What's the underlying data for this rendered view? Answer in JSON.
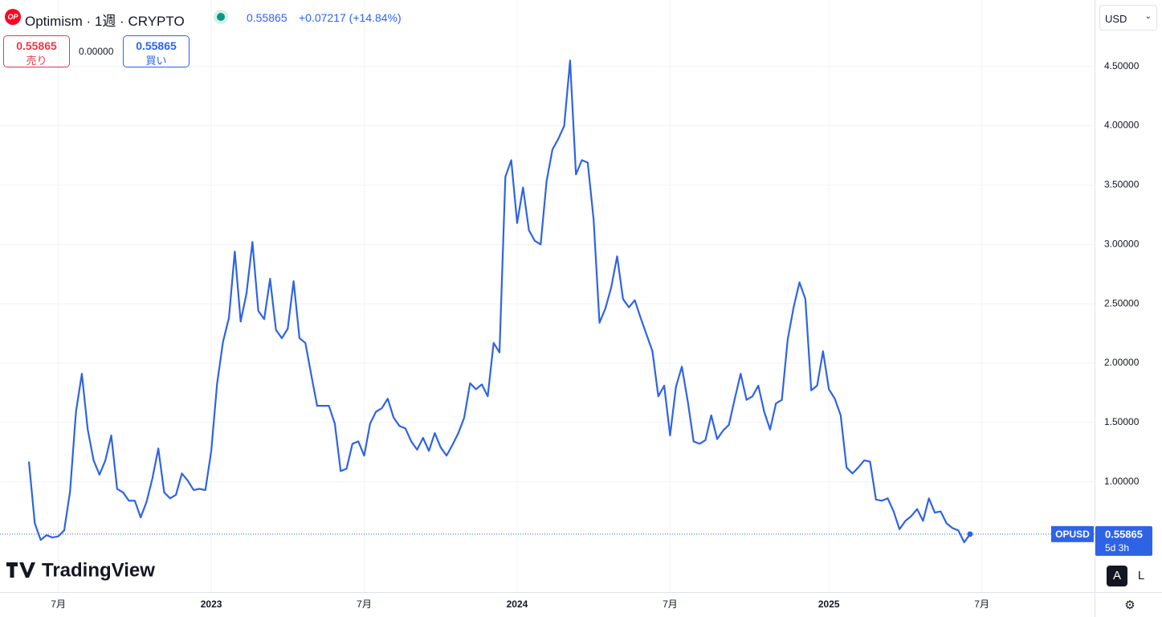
{
  "header": {
    "logo": "OP",
    "title": "Optimism · 1週 · CRYPTO",
    "price": "0.55865",
    "change": "+0.07217 (+14.84%)",
    "sell_price": "0.55865",
    "sell_label": "売り",
    "spread": "0.00000",
    "buy_price": "0.55865",
    "buy_label": "買い",
    "currency": "USD",
    "brand": "TradingView",
    "buttons": [
      "A",
      "L"
    ]
  },
  "chart_data": {
    "type": "line",
    "symbol": "OPUSD",
    "last_price_label": "0.55865",
    "countdown": "5d 3h",
    "categories": [
      null,
      null,
      null,
      null,
      null,
      "7月",
      null,
      null,
      null,
      null,
      null,
      null,
      null,
      null,
      null,
      null,
      null,
      null,
      null,
      null,
      null,
      null,
      null,
      null,
      null,
      null,
      null,
      null,
      null,
      null,
      null,
      "2023",
      null,
      null,
      null,
      null,
      null,
      null,
      null,
      null,
      null,
      null,
      null,
      null,
      null,
      null,
      null,
      null,
      null,
      null,
      null,
      null,
      null,
      null,
      null,
      null,
      null,
      "7月",
      null,
      null,
      null,
      null,
      null,
      null,
      null,
      null,
      null,
      null,
      null,
      null,
      null,
      null,
      null,
      null,
      null,
      null,
      null,
      null,
      null,
      null,
      null,
      null,
      null,
      "2024",
      null,
      null,
      null,
      null,
      null,
      null,
      null,
      null,
      null,
      null,
      null,
      null,
      null,
      null,
      null,
      null,
      null,
      null,
      null,
      null,
      null,
      null,
      null,
      null,
      null,
      "7月",
      null,
      null,
      null,
      null,
      null,
      null,
      null,
      null,
      null,
      null,
      null,
      null,
      null,
      null,
      null,
      null,
      null,
      null,
      null,
      null,
      null,
      null,
      null,
      null,
      null,
      null,
      "2025",
      null,
      null,
      null,
      null,
      null,
      null,
      null,
      null,
      null,
      null,
      null,
      null,
      null,
      null,
      null,
      null,
      null,
      null,
      null,
      null,
      null,
      null,
      null,
      null,
      null,
      "7月",
      null,
      null,
      null,
      null,
      null,
      null,
      null,
      null,
      null,
      null,
      null,
      null,
      null,
      null,
      null,
      null,
      null,
      null
    ],
    "series": [
      {
        "name": "OPUSD",
        "color": "#2f63e6",
        "values": [
          1.17,
          0.65,
          0.51,
          0.55,
          0.53,
          0.54,
          0.59,
          0.92,
          1.59,
          1.91,
          1.44,
          1.18,
          1.06,
          1.18,
          1.39,
          0.94,
          0.91,
          0.84,
          0.84,
          0.7,
          0.83,
          1.03,
          1.28,
          0.91,
          0.86,
          0.89,
          1.07,
          1.01,
          0.93,
          0.94,
          0.93,
          1.26,
          1.83,
          2.18,
          2.38,
          2.94,
          2.35,
          2.59,
          3.02,
          2.44,
          2.37,
          2.71,
          2.28,
          2.21,
          2.29,
          2.69,
          2.21,
          2.17,
          1.9,
          1.64,
          1.64,
          1.64,
          1.49,
          1.09,
          1.11,
          1.32,
          1.34,
          1.22,
          1.49,
          1.59,
          1.62,
          1.7,
          1.54,
          1.47,
          1.45,
          1.34,
          1.27,
          1.37,
          1.26,
          1.41,
          1.29,
          1.22,
          1.31,
          1.41,
          1.54,
          1.83,
          1.78,
          1.82,
          1.72,
          2.17,
          2.09,
          3.57,
          3.71,
          3.18,
          3.48,
          3.12,
          3.03,
          3.0,
          3.53,
          3.8,
          3.89,
          4.0,
          4.55,
          3.59,
          3.71,
          3.69,
          3.21,
          2.34,
          2.46,
          2.64,
          2.9,
          2.54,
          2.47,
          2.53,
          2.38,
          2.24,
          2.1,
          1.72,
          1.81,
          1.39,
          1.8,
          1.97,
          1.68,
          1.34,
          1.32,
          1.35,
          1.56,
          1.36,
          1.43,
          1.48,
          1.7,
          1.91,
          1.69,
          1.72,
          1.81,
          1.59,
          1.44,
          1.66,
          1.69,
          2.2,
          2.47,
          2.68,
          2.54,
          1.77,
          1.81,
          2.1,
          1.78,
          1.7,
          1.56,
          1.12,
          1.07,
          1.12,
          1.18,
          1.17,
          0.85,
          0.84,
          0.86,
          0.75,
          0.6,
          0.67,
          0.71,
          0.77,
          0.67,
          0.86,
          0.74,
          0.75,
          0.65,
          0.61,
          0.59,
          0.49,
          0.55865,
          null,
          null,
          null,
          null,
          null,
          null,
          null,
          null,
          null,
          null,
          null,
          null,
          null,
          null,
          null,
          null,
          null,
          null,
          null,
          null
        ]
      }
    ],
    "ylim": [
      0.07,
      5.06
    ],
    "yticks": [
      {
        "value": 1,
        "label": "1.00000"
      },
      {
        "value": 1.5,
        "label": "1.50000"
      },
      {
        "value": 2,
        "label": "2.00000"
      },
      {
        "value": 2.5,
        "label": "2.50000"
      },
      {
        "value": 3,
        "label": "3.00000"
      },
      {
        "value": 3.5,
        "label": "3.50000"
      },
      {
        "value": 4,
        "label": "4.00000"
      },
      {
        "value": 4.5,
        "label": "4.50000"
      }
    ],
    "grid": true
  }
}
